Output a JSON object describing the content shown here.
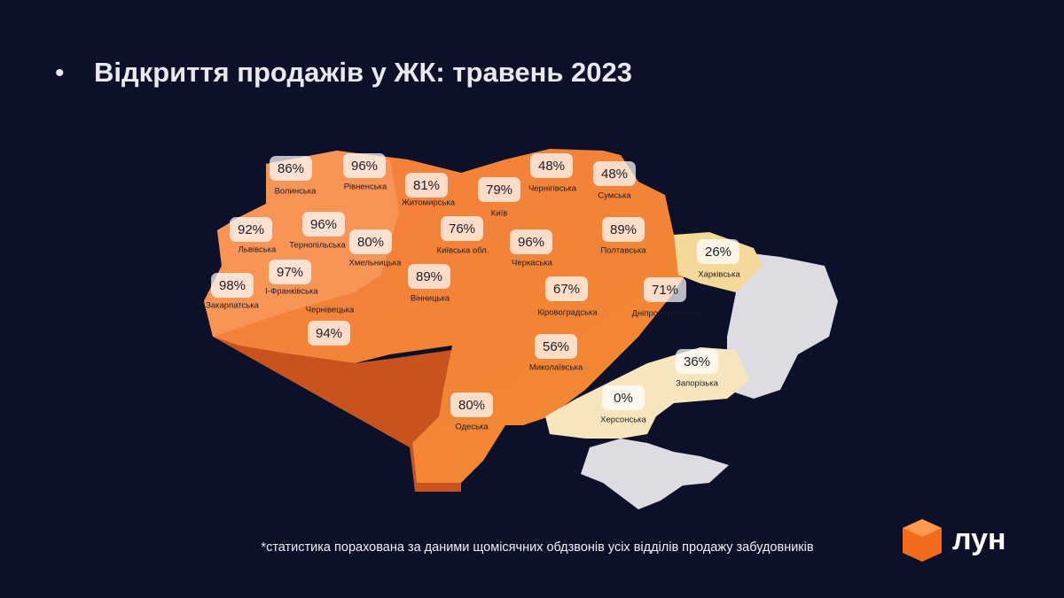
{
  "header": {
    "bullet": "•",
    "title": "Відкриття продажів у ЖК: травень 2023"
  },
  "regions": [
    {
      "name": "Волинська",
      "value": "86%"
    },
    {
      "name": "Рівненська",
      "value": "96%"
    },
    {
      "name": "Житомирська",
      "value": "81%"
    },
    {
      "name": "Київ",
      "value": "79%"
    },
    {
      "name": "Чернігівська",
      "value": "48%"
    },
    {
      "name": "Сумська",
      "value": "48%"
    },
    {
      "name": "Львівська",
      "value": "92%"
    },
    {
      "name": "Тернопільська",
      "value": "96%"
    },
    {
      "name": "Хмельницька",
      "value": "80%"
    },
    {
      "name": "Київська обл.",
      "value": "76%"
    },
    {
      "name": "Черкаська",
      "value": "96%"
    },
    {
      "name": "Полтавська",
      "value": "89%"
    },
    {
      "name": "Харківська",
      "value": "26%"
    },
    {
      "name": "Закарпатська",
      "value": "98%"
    },
    {
      "name": "І-Франківська",
      "value": "97%"
    },
    {
      "name": "Вінницька",
      "value": "89%"
    },
    {
      "name": "Чернівецька",
      "value": "94%"
    },
    {
      "name": "Кіровоградська",
      "value": "67%"
    },
    {
      "name": "Дніпропетровська",
      "value": "71%"
    },
    {
      "name": "Миколаївська",
      "value": "56%"
    },
    {
      "name": "Запорізька",
      "value": "36%"
    },
    {
      "name": "Херсонська",
      "value": "0%"
    },
    {
      "name": "Одеська",
      "value": "80%"
    }
  ],
  "footnote": "*статистика порахована за даними щомісячних обдзвонів усіх відділів продажу забудовників",
  "logo": "лун"
}
